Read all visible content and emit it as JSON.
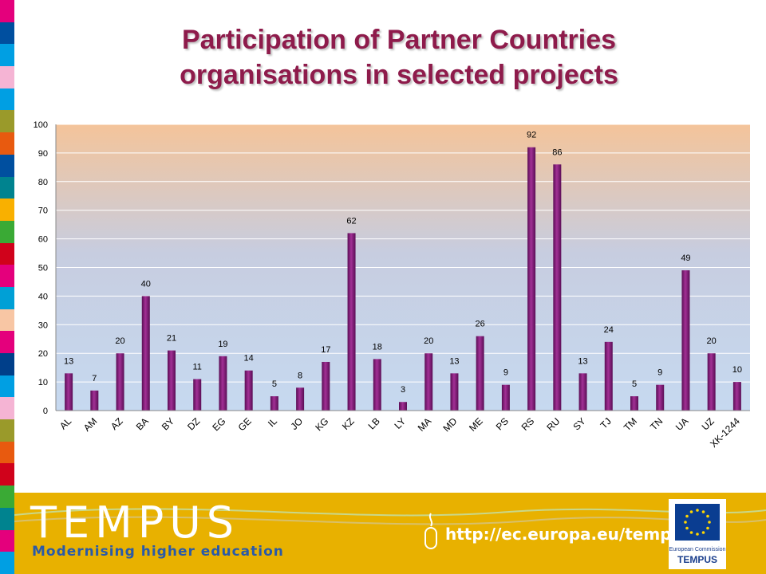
{
  "title_line1": "Participation of Partner Countries",
  "title_line2": "organisations in selected projects",
  "stripe_colors": [
    "#e4007c",
    "#004f9f",
    "#009fe3",
    "#f5b4d4",
    "#009fe3",
    "#9a9a2a",
    "#e85a0f",
    "#004f9f",
    "#00838f",
    "#f9b000",
    "#3aaa35",
    "#d0021b",
    "#e4007c",
    "#00a0d6",
    "#f8c6a4",
    "#e4007c",
    "#003f8a",
    "#009fe3",
    "#f5b4d4",
    "#9a9a2a",
    "#e85a0f",
    "#d0021b",
    "#3aaa35",
    "#00838f",
    "#e4007c",
    "#009fe3"
  ],
  "footer": {
    "brand": "TEMPUS",
    "tagline": "Modernising higher education",
    "url": "http://ec.europa.eu/tempus",
    "ec_label": "European Commission",
    "ec_tempus": "TEMPUS"
  },
  "chart_data": {
    "type": "bar",
    "categories": [
      "AL",
      "AM",
      "AZ",
      "BA",
      "BY",
      "DZ",
      "EG",
      "GE",
      "IL",
      "JO",
      "KG",
      "KZ",
      "LB",
      "LY",
      "MA",
      "MD",
      "ME",
      "PS",
      "RS",
      "RU",
      "SY",
      "TJ",
      "TM",
      "TN",
      "UA",
      "UZ",
      "XK-1244"
    ],
    "values": [
      13,
      7,
      20,
      40,
      21,
      11,
      19,
      14,
      5,
      8,
      17,
      62,
      18,
      3,
      20,
      13,
      26,
      9,
      92,
      86,
      13,
      24,
      5,
      9,
      49,
      20,
      10
    ],
    "title": "Participation of Partner Countries organisations in selected projects",
    "ylim": [
      0,
      100
    ],
    "yticks": [
      0,
      10,
      20,
      30,
      40,
      50,
      60,
      70,
      80,
      90,
      100
    ],
    "grid": true,
    "bar_color": "#8b1a7a",
    "background_top": "#f4c49a",
    "background_bottom": "#c6d9f0"
  }
}
